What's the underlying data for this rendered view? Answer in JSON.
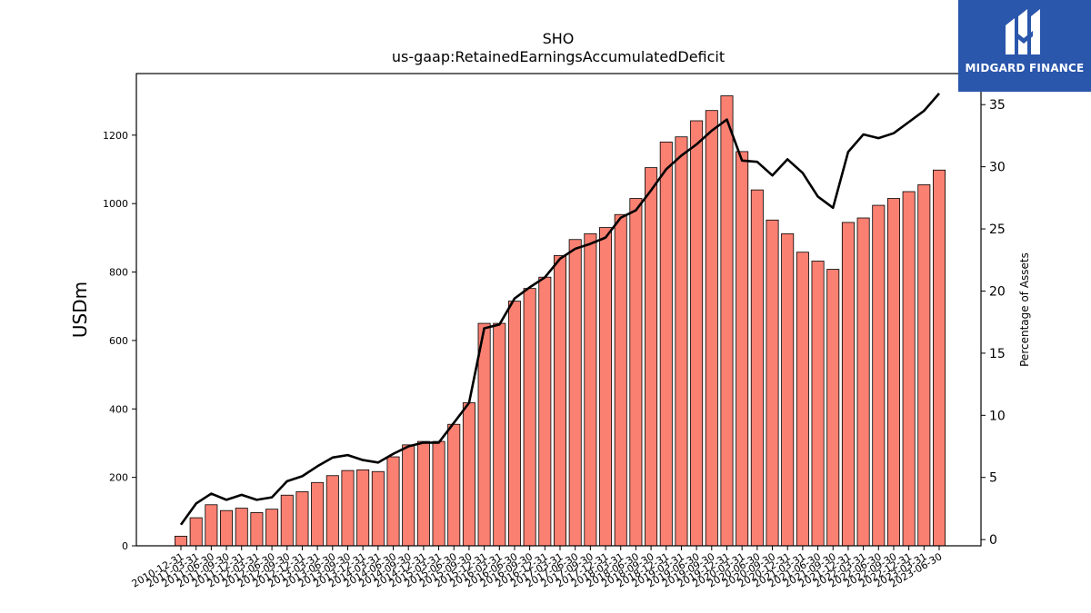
{
  "chart_data": {
    "type": "bar",
    "title": "SHO",
    "subtitle": "us-gaap:RetainedEarningsAccumulatedDeficit",
    "ylabel": "USDm",
    "y2label": "Percentage of Assets",
    "ylim": [
      0,
      1380
    ],
    "y2lim": [
      -0.5,
      37.5
    ],
    "yticks": [
      0,
      200,
      400,
      600,
      800,
      1000,
      1200
    ],
    "y2ticks": [
      0,
      5,
      10,
      15,
      20,
      25,
      30,
      35
    ],
    "grid": false,
    "categories": [
      "2010-12-31",
      "2011-03-31",
      "2011-06-30",
      "2011-09-30",
      "2011-12-31",
      "2012-03-31",
      "2012-06-30",
      "2012-09-30",
      "2012-12-31",
      "2013-03-31",
      "2013-06-30",
      "2013-09-30",
      "2013-12-31",
      "2014-03-31",
      "2014-06-30",
      "2014-09-30",
      "2014-12-31",
      "2015-03-31",
      "2015-06-30",
      "2015-09-30",
      "2015-12-31",
      "2016-03-31",
      "2016-06-30",
      "2016-09-30",
      "2016-12-31",
      "2017-03-31",
      "2017-06-30",
      "2017-09-30",
      "2017-12-31",
      "2018-03-31",
      "2018-06-30",
      "2018-09-30",
      "2018-12-31",
      "2019-03-31",
      "2019-06-30",
      "2019-09-30",
      "2019-12-31",
      "2020-03-31",
      "2020-06-30",
      "2020-09-30",
      "2020-12-31",
      "2021-03-31",
      "2021-06-30",
      "2021-09-30",
      "2021-12-31",
      "2022-03-31",
      "2022-06-30",
      "2022-09-30",
      "2022-12-31",
      "2023-03-31",
      "2023-06-30"
    ],
    "series": [
      {
        "type": "bar",
        "axis": "left",
        "color": "#fa8072",
        "values": [
          28,
          82,
          120,
          103,
          110,
          97,
          107,
          148,
          158,
          185,
          205,
          220,
          222,
          217,
          260,
          295,
          305,
          305,
          355,
          418,
          650,
          650,
          715,
          752,
          785,
          848,
          895,
          912,
          930,
          968,
          1015,
          1105,
          1180,
          1195,
          1242,
          1272,
          1315,
          1152,
          1040,
          952,
          912,
          858,
          832,
          808,
          945,
          958,
          995,
          1015,
          1035,
          1055,
          1098
        ]
      },
      {
        "type": "line",
        "axis": "right",
        "color": "#000000",
        "values": [
          1.2,
          2.9,
          3.7,
          3.2,
          3.6,
          3.2,
          3.4,
          4.7,
          5.1,
          5.9,
          6.6,
          6.8,
          6.4,
          6.2,
          6.9,
          7.5,
          7.8,
          7.8,
          9.4,
          11.0,
          17.0,
          17.3,
          19.4,
          20.3,
          21.1,
          22.6,
          23.4,
          23.8,
          24.3,
          25.9,
          26.5,
          28.1,
          29.8,
          30.9,
          31.8,
          32.9,
          33.8,
          30.5,
          30.4,
          29.3,
          30.6,
          29.5,
          27.6,
          26.7,
          31.2,
          32.6,
          32.3,
          32.7,
          33.6,
          34.5,
          35.9
        ]
      }
    ]
  },
  "logo": {
    "text": "MIDGARD FINANCE",
    "color": "#2a56ab"
  }
}
